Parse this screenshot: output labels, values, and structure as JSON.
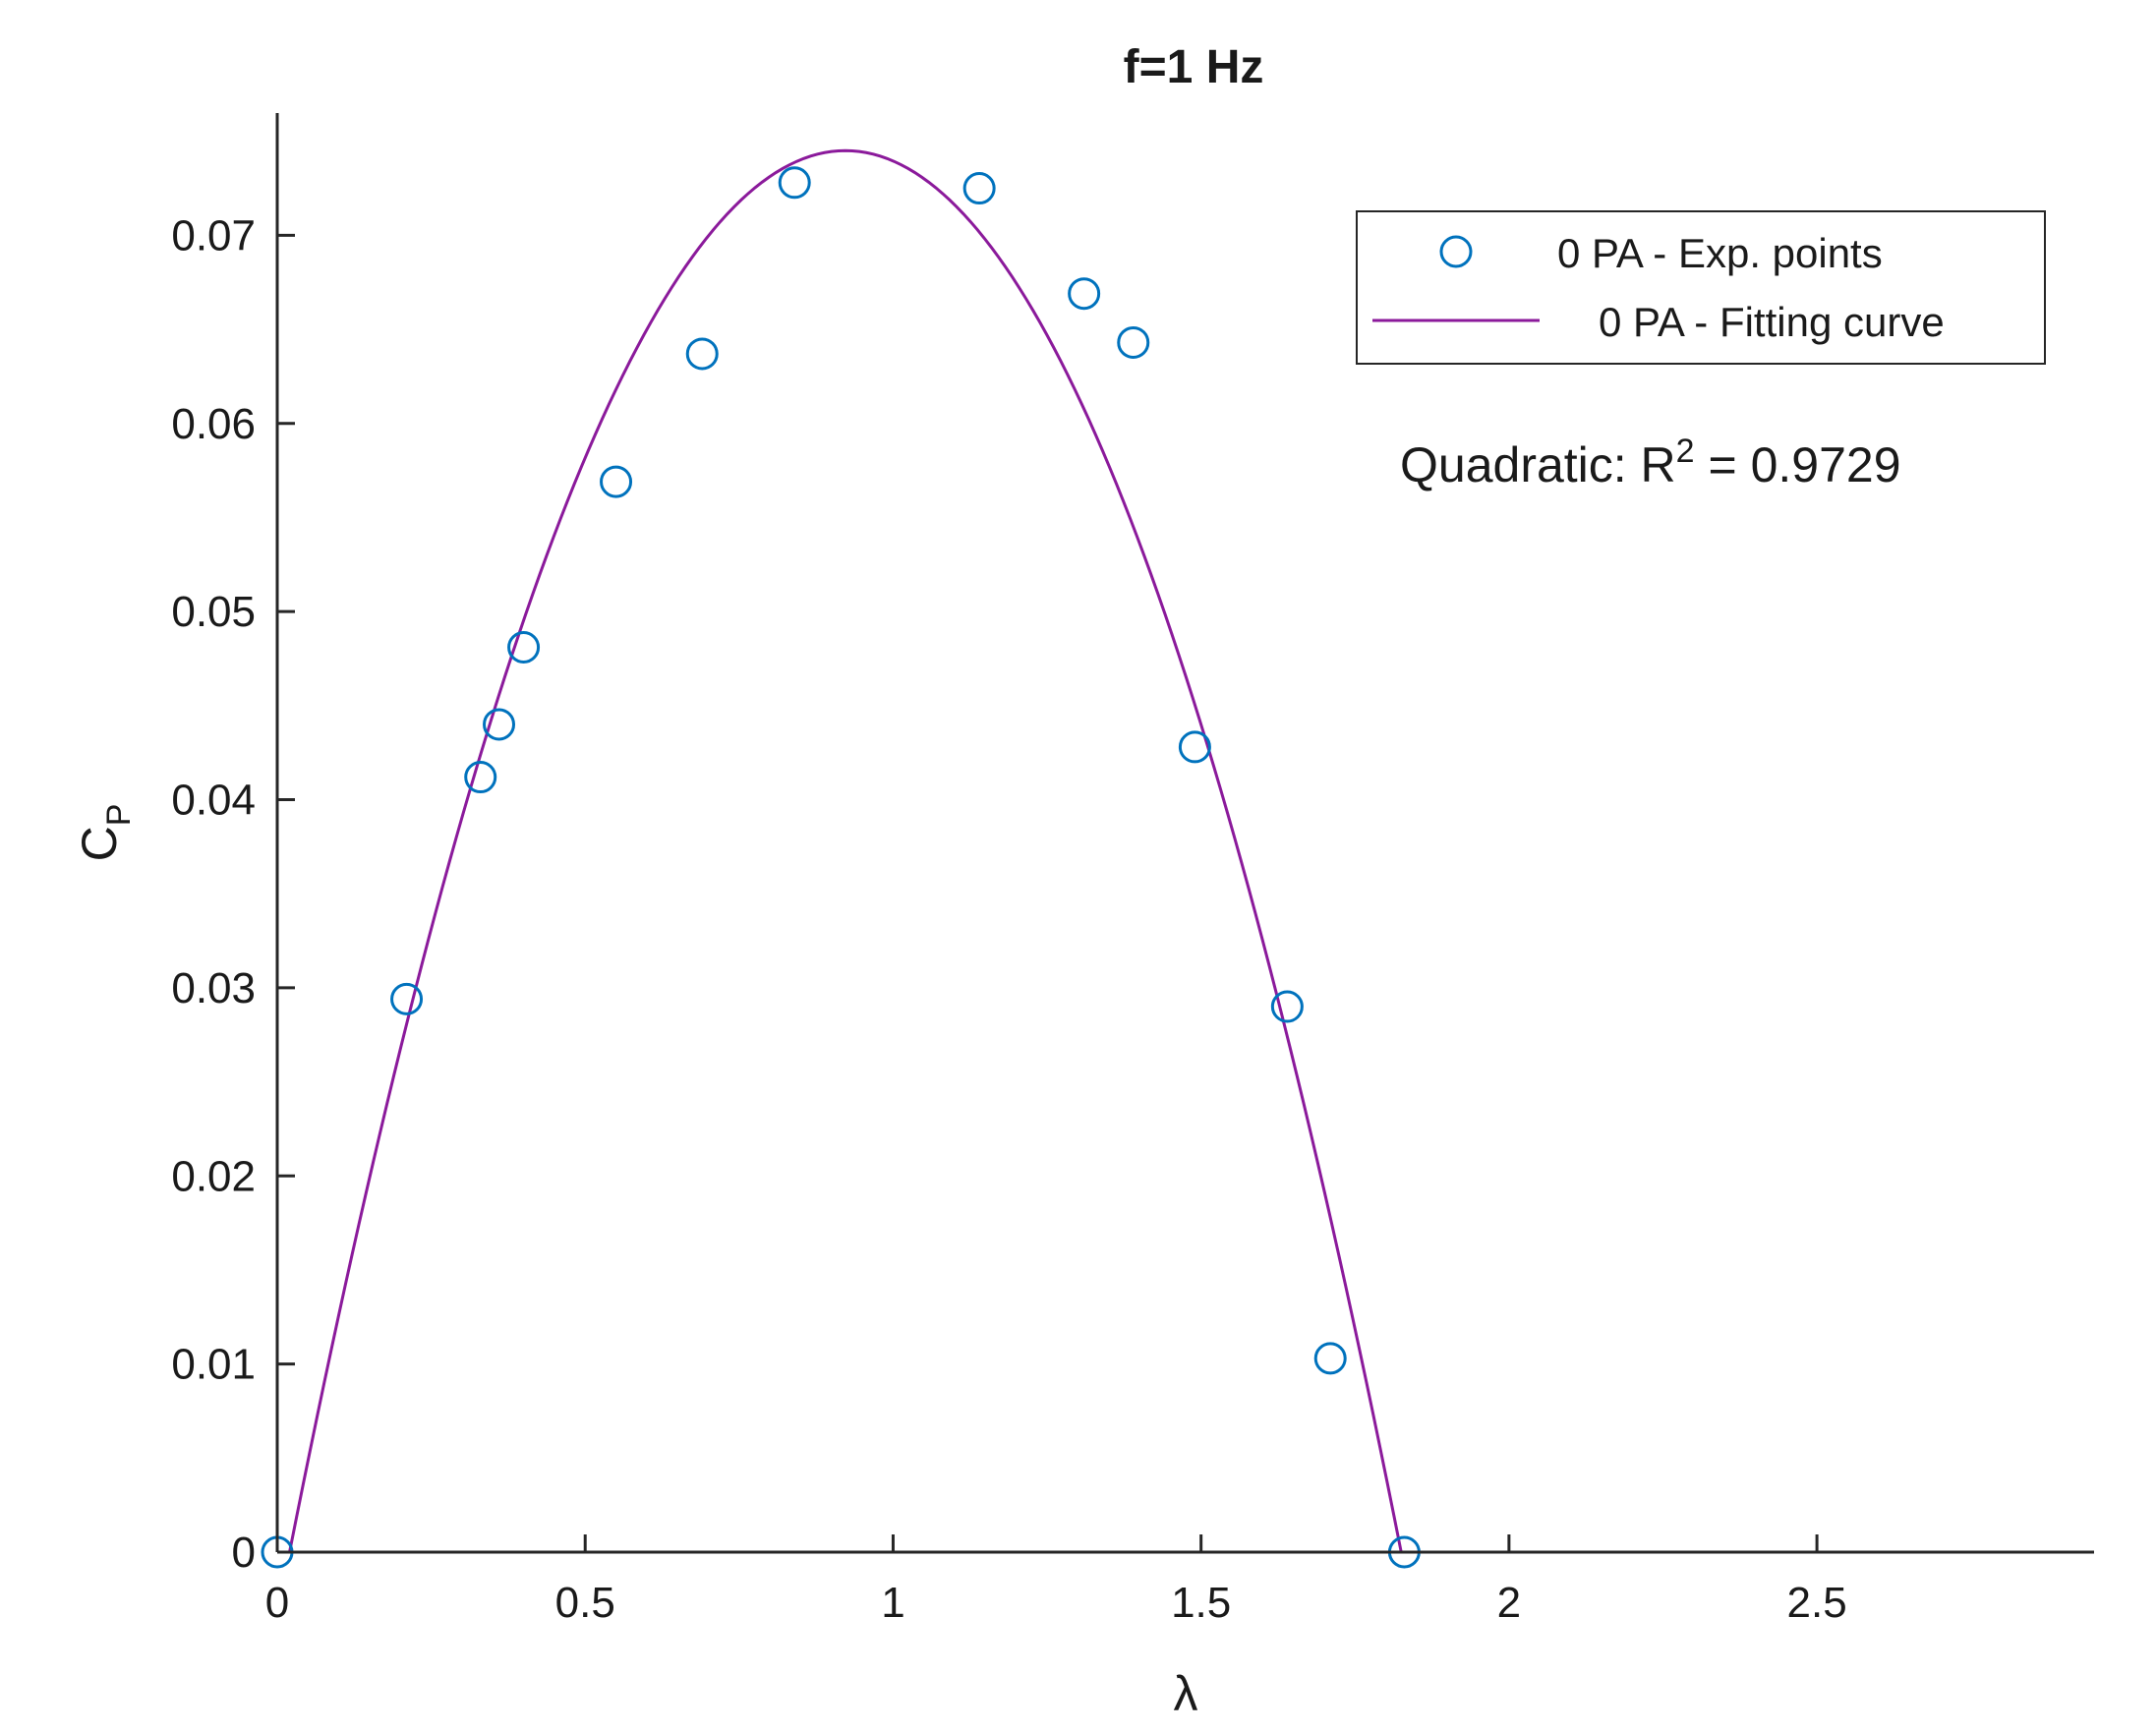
{
  "chart_data": {
    "type": "scatter",
    "title": "f=1 Hz",
    "xlabel": "λ",
    "ylabel_main": "C",
    "ylabel_sub": "P",
    "xlim": [
      0,
      2.95
    ],
    "ylim": [
      0,
      0.0765
    ],
    "xticks": [
      0,
      0.5,
      1,
      1.5,
      2,
      2.5
    ],
    "xtick_labels": [
      "0",
      "0.5",
      "1",
      "1.5",
      "2",
      "2.5"
    ],
    "yticks": [
      0,
      0.01,
      0.02,
      0.03,
      0.04,
      0.05,
      0.06,
      0.07
    ],
    "ytick_labels": [
      "0",
      "0.01",
      "0.02",
      "0.03",
      "0.04",
      "0.05",
      "0.06",
      "0.07"
    ],
    "grid": false,
    "legend_position": "top-right",
    "series": [
      {
        "name": "0 PA - Exp. points",
        "kind": "scatter",
        "marker": "circle-open",
        "color": "#0072BD",
        "x": [
          0.0,
          0.21,
          0.33,
          0.36,
          0.4,
          0.55,
          0.69,
          0.84,
          1.14,
          1.31,
          1.39,
          1.49,
          1.64,
          1.71,
          1.83
        ],
        "y": [
          0.0,
          0.0294,
          0.0412,
          0.044,
          0.0481,
          0.0569,
          0.0637,
          0.0728,
          0.0725,
          0.0669,
          0.0643,
          0.0428,
          0.029,
          0.0103,
          0.0
        ]
      },
      {
        "name": "0 PA - Fitting curve",
        "kind": "line",
        "color": "#8B1A9B",
        "x_range": [
          0.02,
          1.825
        ],
        "vertex_x": 0.9225,
        "vertex_y": 0.0745
      }
    ],
    "annotation": {
      "text": "Quadratic: R",
      "superscript": "2",
      "suffix": " = 0.9729"
    }
  }
}
